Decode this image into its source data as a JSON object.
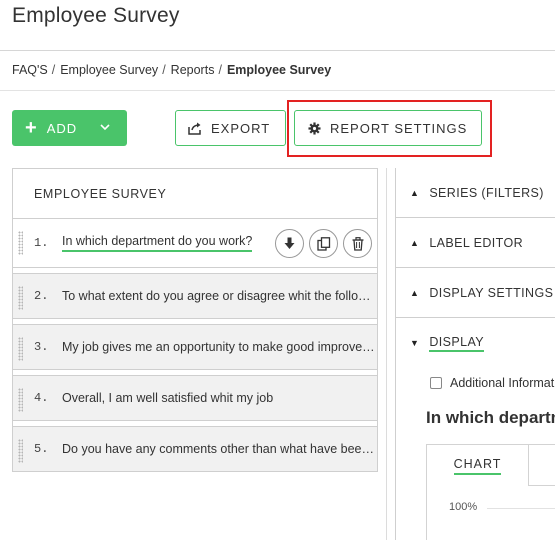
{
  "page": {
    "title": "Employee Survey"
  },
  "breadcrumb": [
    {
      "label": "FAQ'S"
    },
    {
      "label": "Employee Survey"
    },
    {
      "label": "Reports"
    },
    {
      "label": "Employee Survey"
    }
  ],
  "toolbar": {
    "add_label": "ADD",
    "export_label": "EXPORT",
    "report_settings_label": "REPORT SETTINGS",
    "accent_color": "#4ac46a",
    "highlight_color": "#e32222"
  },
  "survey": {
    "header": "EMPLOYEE SURVEY",
    "questions": [
      {
        "num": "1.",
        "text": "In which department do you work?"
      },
      {
        "num": "2.",
        "text": "To what extent do you agree or disagree whit the following statements"
      },
      {
        "num": "3.",
        "text": "My job gives me an opportunity to make good improvement"
      },
      {
        "num": "4.",
        "text": "Overall, I am well satisfied whit my job"
      },
      {
        "num": "5.",
        "text": "Do you have any comments other than what have been asked"
      }
    ],
    "row_actions": [
      "download-icon",
      "copy-icon",
      "trash-icon"
    ]
  },
  "settings_panel": {
    "sections": [
      {
        "label": "SERIES (FILTERS)",
        "state": "collapsed"
      },
      {
        "label": "LABEL EDITOR",
        "state": "collapsed"
      },
      {
        "label": "DISPLAY SETTINGS",
        "state": "collapsed"
      },
      {
        "label": "DISPLAY",
        "state": "expanded"
      }
    ],
    "additional_info_label": "Additional Information",
    "question_heading": "In which department do you work?",
    "tab_chart_label": "CHART",
    "axis_top_label": "100%"
  }
}
